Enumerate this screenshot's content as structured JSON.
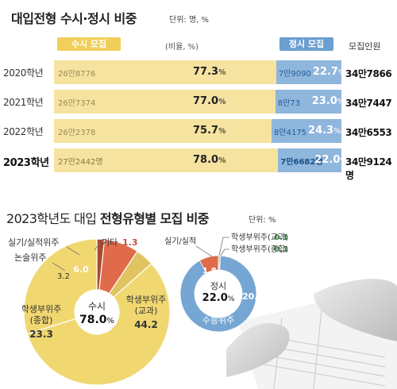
{
  "top": {
    "title": "대입전형 수시·정시 비중",
    "unit": "단위: 명, %",
    "header_susi": "수시 모집",
    "header_ratio": "(비율, %)",
    "header_jeongsi": "정시 모집",
    "header_total": "모집인원"
  },
  "bottom": {
    "title_normal": "2023학년도 대입 ",
    "title_bold": "전형유형별 모집 비중",
    "unit": "단위: %"
  },
  "colors": {
    "susi_bar": "#f6e3a0",
    "jeongsi_bar": "#8fb6dc",
    "susi_pill": "#f0cf5a",
    "jeongsi_pill": "#6a9fd0",
    "donut_student_record": "#f0d770",
    "donut_essay": "#e0c460",
    "donut_practical": "#e06b4a",
    "donut_etc": "#a84a32",
    "donut_suneung": "#76a6d3",
    "donut_practical_j": "#e06b4a",
    "donut_student_j": "#4aa05a"
  },
  "chart_data": [
    {
      "type": "bar",
      "stacked": true,
      "orientation": "horizontal",
      "categories": [
        "2020학년",
        "2021학년",
        "2022학년",
        "2023학년"
      ],
      "series": [
        {
          "name": "수시 모집",
          "counts": [
            "26만8776",
            "26만7374",
            "26만2378",
            "27만2442명"
          ],
          "values": [
            77.3,
            77.0,
            75.7,
            78.0
          ],
          "labels": [
            "77.3",
            "77.0",
            "75.7",
            "78.0"
          ]
        },
        {
          "name": "정시 모집",
          "counts": [
            "7만9090",
            "8만73",
            "8만4175",
            "7만6682명"
          ],
          "values": [
            22.7,
            23.0,
            24.3,
            22.0
          ],
          "labels": [
            "22.7",
            "23.0",
            "24.3",
            "22.0"
          ]
        }
      ],
      "totals": [
        "34만7866",
        "34만7447",
        "34만6553",
        "34만9124명"
      ],
      "pct_suffix": "%",
      "xlim": [
        0,
        100
      ]
    },
    {
      "type": "pie",
      "donut": true,
      "center_label": "수시",
      "center_value": "78.0",
      "pct_suffix": "%",
      "slices": [
        {
          "label": "학생부위주(교과)",
          "value": 44.2,
          "label_line1": "학생부위주",
          "label_line2": "(교과)",
          "value_text": "44.2",
          "color": "#f0d770"
        },
        {
          "label": "학생부위주(종합)",
          "value": 23.3,
          "label_line1": "학생부위주",
          "label_line2": "(종합)",
          "value_text": "23.3",
          "color": "#f0d770"
        },
        {
          "label": "논술위주",
          "value": 3.2,
          "value_text": "3.2",
          "color": "#e0c460"
        },
        {
          "label": "실기/실적위주",
          "value": 6.0,
          "value_text": "6.0",
          "color": "#e06b4a"
        },
        {
          "label": "기타",
          "value": 1.3,
          "value_text": "1.3",
          "color": "#a84a32"
        }
      ]
    },
    {
      "type": "pie",
      "donut": true,
      "center_label": "정시",
      "center_value": "22.0",
      "pct_suffix": "%",
      "slices": [
        {
          "label": "수능위주",
          "value": 20.0,
          "value_text": "20.0",
          "color": "#76a6d3"
        },
        {
          "label": "실기/실적",
          "value": 1.8,
          "value_text": "1.8",
          "color": "#e06b4a"
        },
        {
          "label": "학생부위주(교과)",
          "value": 0.1,
          "value_text": "0.1",
          "color": "#4aa05a"
        },
        {
          "label": "학생부위주(종합)",
          "value": 0.1,
          "value_text": "0.1",
          "color": "#2f7a3c"
        }
      ]
    }
  ]
}
